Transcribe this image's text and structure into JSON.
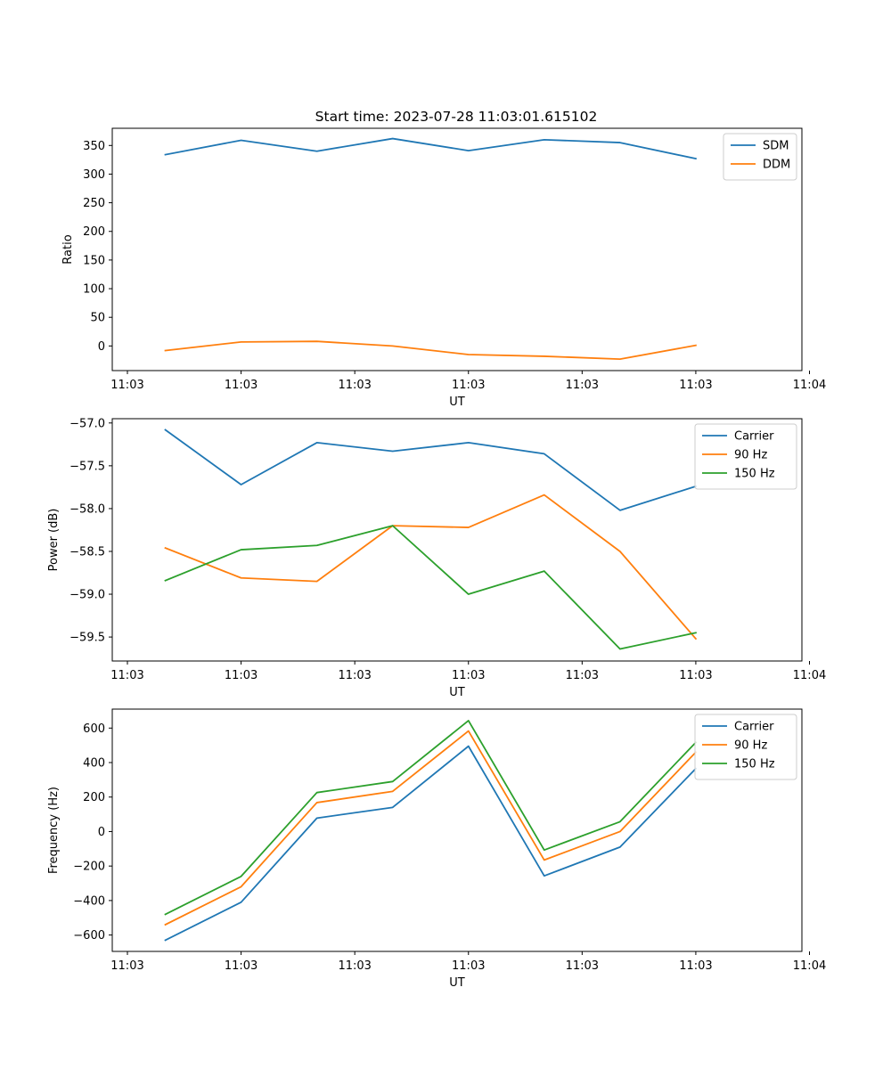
{
  "title": "Start time: 2023-07-28 11:03:01.615102",
  "chart_data": [
    {
      "type": "line",
      "ylabel": "Ratio",
      "xlabel": "UT",
      "xlim": [
        -0.7,
        8.4
      ],
      "ylim": [
        -43,
        380
      ],
      "x": [
        0,
        1,
        2,
        3,
        4,
        5,
        6,
        7
      ],
      "xticks": [
        -0.5,
        1,
        2.5,
        4,
        5.5,
        7,
        8.5
      ],
      "xtick_labels": [
        "11:03",
        "11:03",
        "11:03",
        "11:03",
        "11:03",
        "11:03",
        "11:04"
      ],
      "yticks": [
        0,
        50,
        100,
        150,
        200,
        250,
        300,
        350
      ],
      "ytick_labels": [
        "0",
        "50",
        "100",
        "150",
        "200",
        "250",
        "300",
        "350"
      ],
      "legend_position": "top-right",
      "series": [
        {
          "name": "SDM",
          "color": "#1f77b4",
          "values": [
            334,
            359,
            340,
            362,
            341,
            360,
            355,
            327
          ]
        },
        {
          "name": "DDM",
          "color": "#ff7f0e",
          "values": [
            -8,
            7,
            8,
            0,
            -15,
            -18,
            -23,
            1
          ]
        }
      ]
    },
    {
      "type": "line",
      "ylabel": "Power (dB)",
      "xlabel": "UT",
      "xlim": [
        -0.7,
        8.4
      ],
      "ylim": [
        -59.78,
        -56.95
      ],
      "x": [
        0,
        1,
        2,
        3,
        4,
        5,
        6,
        7
      ],
      "xticks": [
        -0.5,
        1,
        2.5,
        4,
        5.5,
        7,
        8.5
      ],
      "xtick_labels": [
        "11:03",
        "11:03",
        "11:03",
        "11:03",
        "11:03",
        "11:03",
        "11:04"
      ],
      "yticks": [
        -57.0,
        -57.5,
        -58.0,
        -58.5,
        -59.0,
        -59.5
      ],
      "ytick_labels": [
        "−57.0",
        "−57.5",
        "−58.0",
        "−58.5",
        "−59.0",
        "−59.5"
      ],
      "legend_position": "top-right",
      "series": [
        {
          "name": "Carrier",
          "color": "#1f77b4",
          "values": [
            -57.08,
            -57.72,
            -57.23,
            -57.33,
            -57.23,
            -57.36,
            -58.02,
            -57.74
          ]
        },
        {
          "name": "90 Hz",
          "color": "#ff7f0e",
          "values": [
            -58.46,
            -58.81,
            -58.85,
            -58.2,
            -58.22,
            -57.84,
            -58.5,
            -59.52
          ]
        },
        {
          "name": "150 Hz",
          "color": "#2ca02c",
          "values": [
            -58.84,
            -58.48,
            -58.43,
            -58.2,
            -59.0,
            -58.73,
            -59.64,
            -59.45
          ]
        }
      ]
    },
    {
      "type": "line",
      "ylabel": "Frequency (Hz)",
      "xlabel": "UT",
      "xlim": [
        -0.7,
        8.4
      ],
      "ylim": [
        -695,
        710
      ],
      "x": [
        0,
        1,
        2,
        3,
        4,
        5,
        6,
        7
      ],
      "xticks": [
        -0.5,
        1,
        2.5,
        4,
        5.5,
        7,
        8.5
      ],
      "xtick_labels": [
        "11:03",
        "11:03",
        "11:03",
        "11:03",
        "11:03",
        "11:03",
        "11:04"
      ],
      "yticks": [
        -600,
        -400,
        -200,
        0,
        200,
        400,
        600
      ],
      "ytick_labels": [
        "−600",
        "−400",
        "−200",
        "0",
        "200",
        "400",
        "600"
      ],
      "legend_position": "top-right",
      "series": [
        {
          "name": "Carrier",
          "color": "#1f77b4",
          "values": [
            -630,
            -410,
            78,
            140,
            495,
            -257,
            -90,
            365
          ]
        },
        {
          "name": "90 Hz",
          "color": "#ff7f0e",
          "values": [
            -540,
            -320,
            168,
            233,
            583,
            -165,
            0,
            460
          ]
        },
        {
          "name": "150 Hz",
          "color": "#2ca02c",
          "values": [
            -480,
            -260,
            226,
            290,
            643,
            -107,
            57,
            517
          ]
        }
      ]
    }
  ]
}
